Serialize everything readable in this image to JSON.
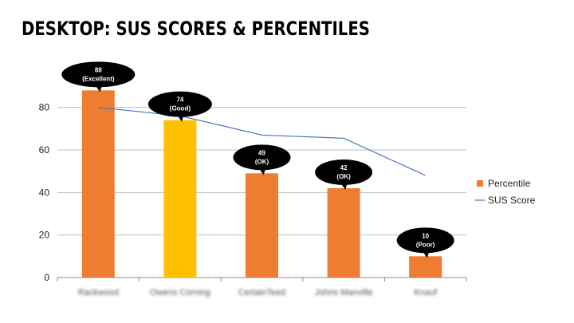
{
  "title": "DESKTOP: SUS SCORES & PERCENTILES",
  "colors": {
    "percentile_bar": "#ED7D31",
    "highlight_bar": "#FFC000",
    "sus_line": "#4472C4",
    "bubble": "#000000",
    "grid": "#bfbfbf"
  },
  "chart_data": {
    "type": "bar",
    "categories": [
      "Rackwood",
      "Owens Corning",
      "CertainTeed",
      "Johns Manville",
      "Knauf"
    ],
    "series": [
      {
        "name": "Percentile",
        "type": "bar",
        "values": [
          88,
          74,
          49,
          42,
          10
        ]
      },
      {
        "name": "SUS Score",
        "type": "line",
        "values": [
          80,
          76,
          67,
          65.5,
          48
        ]
      }
    ],
    "highlight_index": 1,
    "data_labels": [
      {
        "value": "88",
        "rating": "(Excellent)"
      },
      {
        "value": "74",
        "rating": "(Good)"
      },
      {
        "value": "49",
        "rating": "(OK)"
      },
      {
        "value": "42",
        "rating": "(OK)"
      },
      {
        "value": "10",
        "rating": "(Poor)"
      }
    ],
    "ylim": [
      0,
      90
    ],
    "yticks": [
      0,
      20,
      40,
      60,
      80
    ],
    "grid": true,
    "legend_position": "right",
    "xlabel": "",
    "ylabel": ""
  }
}
